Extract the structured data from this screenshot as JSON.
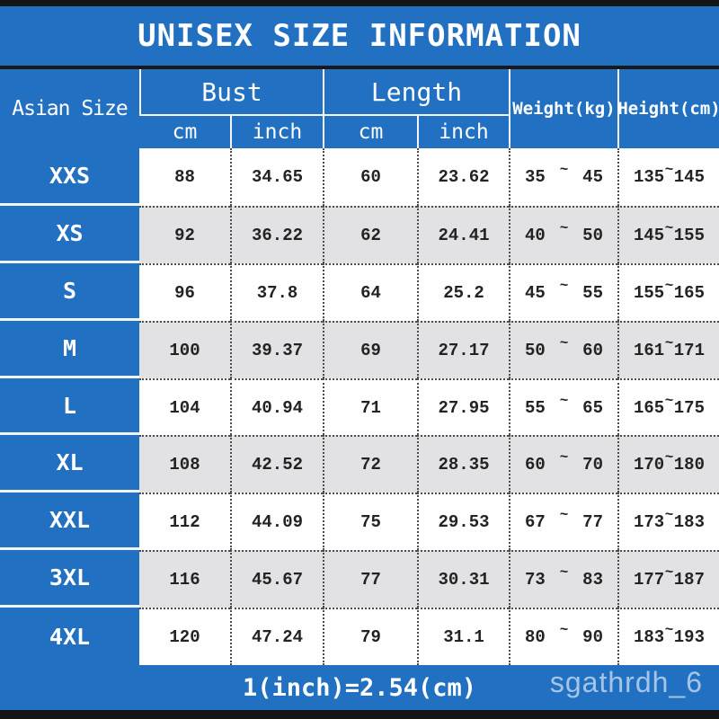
{
  "title": "UNISEX SIZE INFORMATION",
  "colors": {
    "accent_blue": "#2170c2",
    "alt_row_gray": "#e2e2e4",
    "frame_black": "#141414"
  },
  "footer": {
    "note": "1(inch)=2.54(cm)",
    "watermark": "sgathrdh_6"
  },
  "table": {
    "range_separator": "~",
    "header": {
      "size": "Asian Size",
      "groups": [
        {
          "label": "Bust",
          "sub": [
            "cm",
            "inch"
          ]
        },
        {
          "label": "Length",
          "sub": [
            "cm",
            "inch"
          ]
        }
      ],
      "weight": "Weight(kg)",
      "height": "Height(cm)"
    },
    "rows": [
      {
        "size": "XXS",
        "bust_cm": "88",
        "bust_inch": "34.65",
        "length_cm": "60",
        "length_inch": "23.62",
        "weight_min": "35",
        "weight_max": "45",
        "height_min": "135",
        "height_max": "145"
      },
      {
        "size": "XS",
        "bust_cm": "92",
        "bust_inch": "36.22",
        "length_cm": "62",
        "length_inch": "24.41",
        "weight_min": "40",
        "weight_max": "50",
        "height_min": "145",
        "height_max": "155"
      },
      {
        "size": "S",
        "bust_cm": "96",
        "bust_inch": "37.8",
        "length_cm": "64",
        "length_inch": "25.2",
        "weight_min": "45",
        "weight_max": "55",
        "height_min": "155",
        "height_max": "165"
      },
      {
        "size": "M",
        "bust_cm": "100",
        "bust_inch": "39.37",
        "length_cm": "69",
        "length_inch": "27.17",
        "weight_min": "50",
        "weight_max": "60",
        "height_min": "161",
        "height_max": "171"
      },
      {
        "size": "L",
        "bust_cm": "104",
        "bust_inch": "40.94",
        "length_cm": "71",
        "length_inch": "27.95",
        "weight_min": "55",
        "weight_max": "65",
        "height_min": "165",
        "height_max": "175"
      },
      {
        "size": "XL",
        "bust_cm": "108",
        "bust_inch": "42.52",
        "length_cm": "72",
        "length_inch": "28.35",
        "weight_min": "60",
        "weight_max": "70",
        "height_min": "170",
        "height_max": "180"
      },
      {
        "size": "XXL",
        "bust_cm": "112",
        "bust_inch": "44.09",
        "length_cm": "75",
        "length_inch": "29.53",
        "weight_min": "67",
        "weight_max": "77",
        "height_min": "173",
        "height_max": "183"
      },
      {
        "size": "3XL",
        "bust_cm": "116",
        "bust_inch": "45.67",
        "length_cm": "77",
        "length_inch": "30.31",
        "weight_min": "73",
        "weight_max": "83",
        "height_min": "177",
        "height_max": "187"
      },
      {
        "size": "4XL",
        "bust_cm": "120",
        "bust_inch": "47.24",
        "length_cm": "79",
        "length_inch": "31.1",
        "weight_min": "80",
        "weight_max": "90",
        "height_min": "183",
        "height_max": "193"
      }
    ]
  }
}
